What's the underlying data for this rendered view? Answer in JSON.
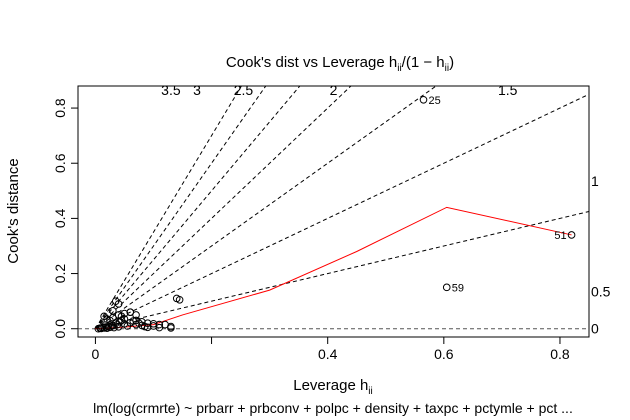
{
  "chart_data": {
    "type": "scatter",
    "title": "Cook's dist vs Leverage  h",
    "title_formula": {
      "main": "Cook's dist vs Leverage  h",
      "sub": "ii",
      "div": "/",
      "paren_open": "(1 − h",
      "paren_sub": "ii",
      "paren_close": ")"
    },
    "xlabel": "Leverage  h",
    "xlabel_sub": "ii",
    "ylabel": "Cook's distance",
    "caption": "lm(log(crmrte) ~ prbarr + prbconv + polpc + density + taxpc + pctymle + pct ...",
    "xlim": [
      -0.03,
      0.85
    ],
    "ylim": [
      -0.03,
      0.88
    ],
    "x_ticks": [
      0,
      0.2,
      0.4,
      0.6,
      0.8
    ],
    "x_tick_labels": [
      "0",
      "0.4",
      "0.6",
      "0.8"
    ],
    "x_labeled_ticks": [
      0,
      0.4,
      0.6,
      0.8
    ],
    "y_ticks": [
      0,
      0.2,
      0.4,
      0.6,
      0.8
    ],
    "y_tick_labels": [
      "0.0",
      "0.2",
      "0.4",
      "0.6",
      "0.8"
    ],
    "grid": false,
    "contours": [
      {
        "label": "3.5",
        "slope": 3.5,
        "label_x": 0.13
      },
      {
        "label": "3",
        "slope": 3,
        "label_x": 0.175
      },
      {
        "label": "2.5",
        "slope": 2.5,
        "label_x": 0.255
      },
      {
        "label": "2",
        "slope": 2,
        "label_x": 0.41
      },
      {
        "label": "1.5",
        "slope": 1.5,
        "label_x": 0.71
      },
      {
        "label": "",
        "slope": 1,
        "label_x": null
      },
      {
        "label": "",
        "slope": 0.5,
        "label_x": null
      }
    ],
    "right_labels": [
      {
        "label": "1",
        "y": 0.535
      },
      {
        "label": "0.5",
        "y": 0.135
      },
      {
        "label": "0",
        "y": 0.0
      }
    ],
    "points_x": [
      0.005,
      0.008,
      0.01,
      0.012,
      0.015,
      0.018,
      0.02,
      0.022,
      0.025,
      0.028,
      0.03,
      0.032,
      0.035,
      0.038,
      0.04,
      0.042,
      0.045,
      0.05,
      0.055,
      0.06,
      0.065,
      0.07,
      0.075,
      0.08,
      0.085,
      0.09,
      0.1,
      0.11,
      0.12,
      0.13,
      0.02,
      0.03,
      0.04,
      0.045,
      0.05,
      0.06,
      0.07,
      0.08,
      0.09,
      0.11,
      0.13,
      0.14,
      0.145,
      0.565,
      0.605,
      0.82,
      0.03,
      0.035,
      0.04,
      0.06,
      0.07,
      0.015,
      0.025,
      0.05,
      0.1
    ],
    "points_y": [
      0.0,
      0.002,
      0.001,
      0.004,
      0.003,
      0.006,
      0.002,
      0.008,
      0.005,
      0.01,
      0.012,
      0.004,
      0.02,
      0.015,
      0.007,
      0.025,
      0.03,
      0.018,
      0.01,
      0.022,
      0.028,
      0.015,
      0.02,
      0.012,
      0.008,
      0.005,
      0.01,
      0.004,
      0.015,
      0.003,
      0.035,
      0.04,
      0.05,
      0.045,
      0.055,
      0.06,
      0.03,
      0.025,
      0.02,
      0.015,
      0.008,
      0.11,
      0.105,
      0.83,
      0.15,
      0.34,
      0.065,
      0.1,
      0.09,
      0.06,
      0.05,
      0.045,
      0.03,
      0.035,
      0.018
    ],
    "labeled_points": [
      {
        "label": "25",
        "x": 0.565,
        "y": 0.83,
        "side": "right"
      },
      {
        "label": "59",
        "x": 0.605,
        "y": 0.15,
        "side": "right"
      },
      {
        "label": "51",
        "x": 0.82,
        "y": 0.34,
        "side": "left"
      }
    ],
    "smooth_x": [
      0.0,
      0.02,
      0.05,
      0.1,
      0.15,
      0.3,
      0.45,
      0.605,
      0.82
    ],
    "smooth_y": [
      0.0,
      0.002,
      0.006,
      0.015,
      0.05,
      0.14,
      0.28,
      0.44,
      0.34
    ],
    "smooth_color": "#ff0000",
    "point_color": "#000000"
  }
}
